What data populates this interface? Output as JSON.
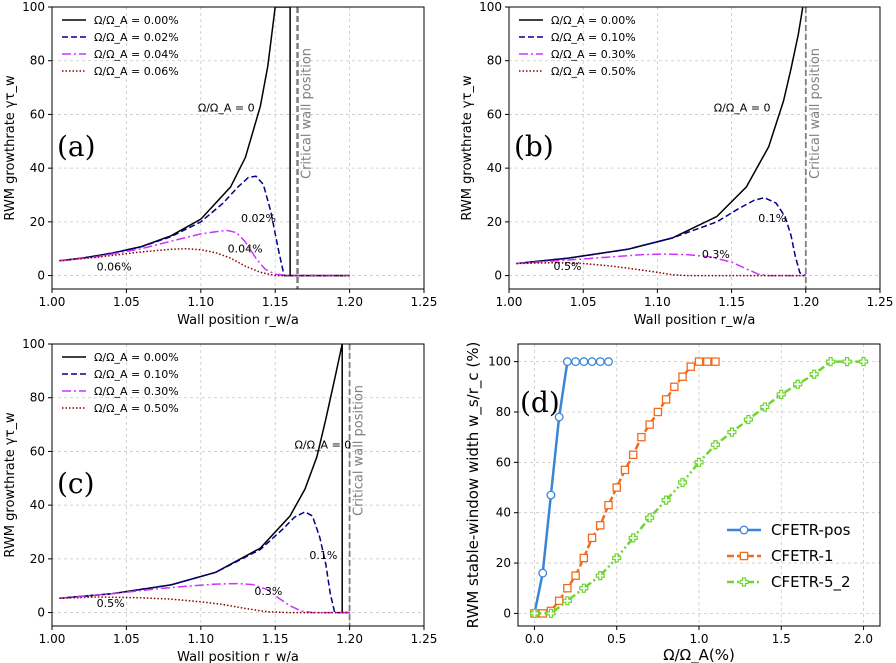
{
  "chart_data": [
    {
      "type": "line",
      "panel_label": "(a)",
      "xlabel": "Wall position r_w/a",
      "ylabel": "RWM growthrate γτ_w",
      "xlim": [
        1.0,
        1.25
      ],
      "ylim": [
        -5,
        100
      ],
      "xticks": [
        "1.00",
        "1.05",
        "1.10",
        "1.15",
        "1.20",
        "1.25"
      ],
      "yticks": [
        "0",
        "20",
        "40",
        "60",
        "80",
        "100"
      ],
      "critical_wall": 1.165,
      "critical_label": "Critical wall position",
      "legend": [
        "Ω/Ω_A = 0.00%",
        "Ω/Ω_A = 0.02%",
        "Ω/Ω_A = 0.04%",
        "Ω/Ω_A = 0.06%"
      ],
      "annotations": [
        {
          "text": "Ω/Ω_A = 0",
          "x": 1.098,
          "y": 61
        },
        {
          "text": "0.02%",
          "x": 1.127,
          "y": 20
        },
        {
          "text": "0.04%",
          "x": 1.118,
          "y": 8.5
        },
        {
          "text": "0.06%",
          "x": 1.03,
          "y": 1.8
        }
      ],
      "series": [
        {
          "name": "0.00%",
          "x": [
            1.005,
            1.02,
            1.04,
            1.06,
            1.08,
            1.1,
            1.12,
            1.13,
            1.14,
            1.145,
            1.15,
            1.155,
            1.16,
            1.16,
            1.17,
            1.2
          ],
          "y": [
            5.5,
            6.5,
            8.3,
            10.8,
            14.8,
            21,
            33,
            44,
            63,
            78,
            100,
            100,
            100,
            0,
            0,
            0
          ]
        },
        {
          "name": "0.02%",
          "x": [
            1.005,
            1.03,
            1.06,
            1.08,
            1.1,
            1.115,
            1.125,
            1.132,
            1.137,
            1.142,
            1.147,
            1.152,
            1.156,
            1.17,
            1.2
          ],
          "y": [
            5.5,
            7.2,
            10.7,
            14.5,
            20,
            27,
            33,
            36.5,
            37,
            34,
            24,
            10,
            0,
            0,
            0
          ]
        },
        {
          "name": "0.04%",
          "x": [
            1.005,
            1.03,
            1.06,
            1.08,
            1.1,
            1.112,
            1.118,
            1.124,
            1.13,
            1.137,
            1.143,
            1.15,
            1.16,
            1.2
          ],
          "y": [
            5.5,
            7,
            10,
            12.8,
            15.5,
            16.5,
            16.8,
            16,
            12.5,
            6.5,
            2.5,
            0.5,
            0,
            0
          ]
        },
        {
          "name": "0.06%",
          "x": [
            1.005,
            1.03,
            1.06,
            1.08,
            1.09,
            1.1,
            1.11,
            1.12,
            1.13,
            1.14,
            1.15,
            1.2
          ],
          "y": [
            5.5,
            6.8,
            8.8,
            9.8,
            10,
            9.6,
            8.5,
            6.5,
            3.5,
            1.2,
            0,
            0
          ]
        }
      ]
    },
    {
      "type": "line",
      "panel_label": "(b)",
      "xlabel": "Wall position r_w/a",
      "ylabel": "RWM growthrate γτ_w",
      "xlim": [
        1.0,
        1.25
      ],
      "ylim": [
        -5,
        100
      ],
      "xticks": [
        "1.00",
        "1.05",
        "1.10",
        "1.15",
        "1.20",
        "1.25"
      ],
      "yticks": [
        "0",
        "20",
        "40",
        "60",
        "80",
        "100"
      ],
      "critical_wall": 1.2,
      "critical_label": "Critical wall position",
      "legend": [
        "Ω/Ω_A = 0.00%",
        "Ω/Ω_A = 0.10%",
        "Ω/Ω_A = 0.30%",
        "Ω/Ω_A = 0.50%"
      ],
      "annotations": [
        {
          "text": "Ω/Ω_A = 0",
          "x": 1.138,
          "y": 61
        },
        {
          "text": "0.1%",
          "x": 1.168,
          "y": 20
        },
        {
          "text": "0.3%",
          "x": 1.13,
          "y": 6.5
        },
        {
          "text": "0.5%",
          "x": 1.03,
          "y": 2
        }
      ],
      "series": [
        {
          "name": "0.00%",
          "x": [
            1.005,
            1.04,
            1.08,
            1.11,
            1.14,
            1.16,
            1.175,
            1.185,
            1.19,
            1.195,
            1.198
          ],
          "y": [
            4.5,
            6.5,
            9.8,
            14,
            22,
            33,
            48,
            65,
            77,
            90,
            100
          ]
        },
        {
          "name": "0.10%",
          "x": [
            1.005,
            1.04,
            1.08,
            1.11,
            1.14,
            1.155,
            1.165,
            1.172,
            1.18,
            1.186,
            1.19,
            1.193,
            1.196,
            1.2
          ],
          "y": [
            4.5,
            6.5,
            9.8,
            14,
            20,
            25,
            28,
            29,
            27,
            22,
            15,
            7,
            1,
            0
          ]
        },
        {
          "name": "0.30%",
          "x": [
            1.005,
            1.04,
            1.07,
            1.09,
            1.105,
            1.12,
            1.135,
            1.15,
            1.16,
            1.168,
            1.175,
            1.2
          ],
          "y": [
            4.5,
            5.8,
            7,
            7.8,
            8,
            7.8,
            7,
            5,
            2.5,
            0.5,
            0,
            0
          ]
        },
        {
          "name": "0.50%",
          "x": [
            1.005,
            1.03,
            1.05,
            1.07,
            1.09,
            1.1,
            1.11,
            1.12,
            1.2
          ],
          "y": [
            4.5,
            4.8,
            4.5,
            3.5,
            2,
            1.2,
            0.3,
            0,
            0
          ]
        }
      ]
    },
    {
      "type": "line",
      "panel_label": "(c)",
      "xlabel": "Wall position r_w/a",
      "ylabel": "RWM growthrate γτ_w",
      "xlim": [
        1.0,
        1.25
      ],
      "ylim": [
        -5,
        100
      ],
      "xticks": [
        "1.00",
        "1.05",
        "1.10",
        "1.15",
        "1.20",
        "1.25"
      ],
      "yticks": [
        "0",
        "20",
        "40",
        "60",
        "80",
        "100"
      ],
      "critical_wall": 1.2,
      "critical_label": "Critical wall position",
      "legend": [
        "Ω/Ω_A = 0.00%",
        "Ω/Ω_A = 0.10%",
        "Ω/Ω_A = 0.30%",
        "Ω/Ω_A = 0.50%"
      ],
      "annotations": [
        {
          "text": "Ω/Ω_A = 0",
          "x": 1.163,
          "y": 61
        },
        {
          "text": "0.1%",
          "x": 1.173,
          "y": 20
        },
        {
          "text": "0.3%",
          "x": 1.136,
          "y": 6.5
        },
        {
          "text": "0.5%",
          "x": 1.03,
          "y": 2
        }
      ],
      "series": [
        {
          "name": "0.00%",
          "x": [
            1.005,
            1.04,
            1.08,
            1.11,
            1.14,
            1.16,
            1.17,
            1.178,
            1.184,
            1.19,
            1.195,
            1.195,
            1.2
          ],
          "y": [
            5.3,
            7,
            10.3,
            15,
            24,
            36,
            46,
            58,
            72,
            87,
            100,
            0,
            0
          ]
        },
        {
          "name": "0.10%",
          "x": [
            1.005,
            1.04,
            1.08,
            1.11,
            1.14,
            1.155,
            1.163,
            1.17,
            1.175,
            1.18,
            1.184,
            1.187,
            1.19,
            1.2
          ],
          "y": [
            5.3,
            7,
            10.3,
            15,
            23.5,
            31,
            35.5,
            37.5,
            36,
            28,
            18,
            7,
            0,
            0
          ]
        },
        {
          "name": "0.30%",
          "x": [
            1.005,
            1.04,
            1.07,
            1.09,
            1.11,
            1.125,
            1.135,
            1.145,
            1.152,
            1.16,
            1.168,
            1.175,
            1.2
          ],
          "y": [
            5.3,
            7,
            8.8,
            9.8,
            10.6,
            10.8,
            10.4,
            8.5,
            5.5,
            2.5,
            0.5,
            0,
            0
          ]
        },
        {
          "name": "0.50%",
          "x": [
            1.005,
            1.03,
            1.06,
            1.08,
            1.1,
            1.115,
            1.13,
            1.145,
            1.16,
            1.2
          ],
          "y": [
            5.3,
            5.8,
            5.5,
            5,
            4,
            3,
            1.5,
            0.3,
            0,
            0
          ]
        }
      ]
    },
    {
      "type": "line",
      "panel_label": "(d)",
      "xlabel": "Ω/Ω_A(%)",
      "ylabel": "RWM stable-window width w_s/r_c (%)",
      "xlim": [
        -0.1,
        2.1
      ],
      "ylim": [
        -5,
        107
      ],
      "xticks": [
        "0.0",
        "0.5",
        "1.0",
        "1.5",
        "2.0"
      ],
      "yticks": [
        "0",
        "20",
        "40",
        "60",
        "80",
        "100"
      ],
      "legend": [
        "CFETR-pos",
        "CFETR-1",
        "CFETR-5_2"
      ],
      "series": [
        {
          "name": "CFETR-pos",
          "color": "#3a86d6",
          "marker": "circle",
          "x": [
            0,
            0.05,
            0.1,
            0.15,
            0.2,
            0.25,
            0.3,
            0.35,
            0.4,
            0.45
          ],
          "y": [
            0,
            16,
            47,
            78,
            100,
            100,
            100,
            100,
            100,
            100
          ]
        },
        {
          "name": "CFETR-1",
          "color": "#f26b1d",
          "marker": "square",
          "x": [
            0,
            0.05,
            0.1,
            0.15,
            0.2,
            0.25,
            0.3,
            0.35,
            0.4,
            0.45,
            0.5,
            0.55,
            0.6,
            0.65,
            0.7,
            0.75,
            0.8,
            0.85,
            0.9,
            0.95,
            1.0,
            1.05,
            1.1
          ],
          "y": [
            0,
            0,
            1,
            5,
            10,
            15,
            22,
            30,
            35,
            43,
            50,
            57,
            63,
            70,
            75,
            80,
            85,
            90,
            94,
            98,
            100,
            100,
            100
          ]
        },
        {
          "name": "CFETR-5_2",
          "color": "#6fd630",
          "marker": "cross",
          "x": [
            0,
            0.1,
            0.2,
            0.3,
            0.4,
            0.5,
            0.6,
            0.7,
            0.8,
            0.9,
            1.0,
            1.1,
            1.2,
            1.3,
            1.4,
            1.5,
            1.6,
            1.7,
            1.8,
            1.9,
            2.0
          ],
          "y": [
            0,
            0,
            5,
            10,
            15,
            22,
            30,
            38,
            45,
            52,
            60,
            67,
            72,
            77,
            82,
            87,
            91,
            95,
            100,
            100,
            100
          ]
        }
      ]
    }
  ]
}
